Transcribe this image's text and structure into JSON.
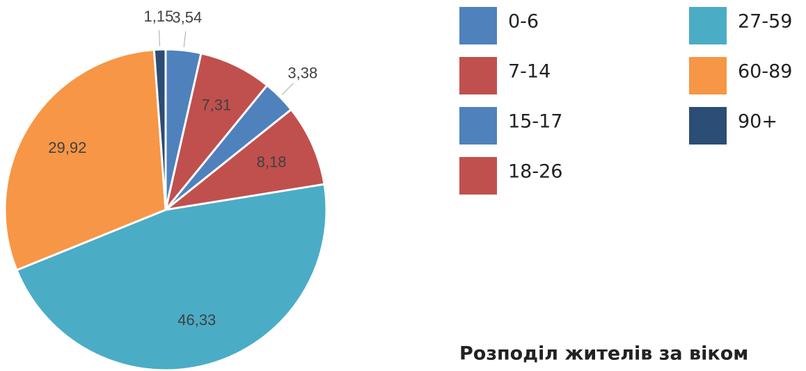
{
  "chart_data": {
    "type": "pie",
    "title": "Розподіл жителів за віком",
    "categories": [
      "0-6",
      "7-14",
      "15-17",
      "18-26",
      "27-59",
      "60-89",
      "90+"
    ],
    "values": [
      3.54,
      7.31,
      3.38,
      8.18,
      46.33,
      29.92,
      1.15
    ],
    "value_labels": [
      "3,54",
      "7,31",
      "3,38",
      "8,18",
      "46,33",
      "29,92",
      "1,15"
    ],
    "colors": [
      "#4f81bd",
      "#c0504d",
      "#4f81bd",
      "#c0504d",
      "#4bacc6",
      "#f79646",
      "#2c4d75"
    ]
  }
}
